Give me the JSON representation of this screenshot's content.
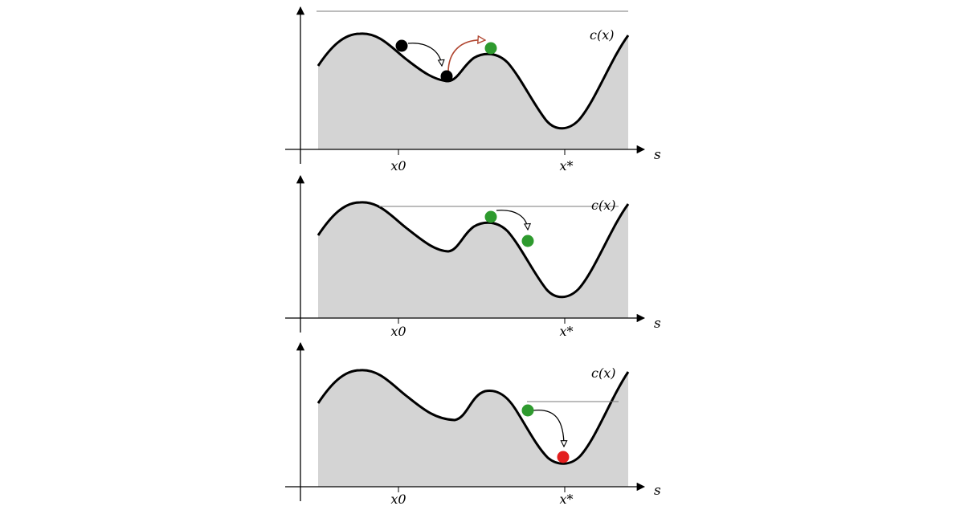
{
  "panels": [
    {
      "curve_label": "c(x)",
      "axis_label": "s",
      "tick_labels": [
        "x0",
        "x*"
      ]
    },
    {
      "curve_label": "c(x)",
      "axis_label": "s",
      "tick_labels": [
        "x0",
        "x*"
      ]
    },
    {
      "curve_label": "c(x)",
      "axis_label": "s",
      "tick_labels": [
        "x0",
        "x*"
      ]
    }
  ],
  "colors": {
    "fill": "#d4d4d4",
    "curve": "#000000",
    "ball_black": "#000000",
    "ball_green": "#2e9a2e",
    "ball_red": "#e31e1e",
    "uphill_arrow": "#b0452f",
    "threshold_line": "#7a7a7a"
  }
}
